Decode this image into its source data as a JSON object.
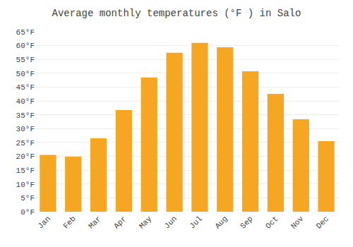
{
  "chart_data": {
    "type": "bar",
    "title": "Average monthly temperatures (°F ) in Salo",
    "categories": [
      "Jan",
      "Feb",
      "Mar",
      "Apr",
      "May",
      "Jun",
      "Jul",
      "Aug",
      "Sep",
      "Oct",
      "Nov",
      "Dec"
    ],
    "values": [
      20.5,
      19.9,
      26.5,
      36.7,
      48.5,
      57.4,
      61.0,
      59.4,
      50.7,
      42.6,
      33.4,
      25.5
    ],
    "color": "#F5A623",
    "ylim": [
      0,
      65
    ],
    "yticks": [
      {
        "value": 0,
        "label": "0°F"
      },
      {
        "value": 5,
        "label": "5°F"
      },
      {
        "value": 10,
        "label": "10°F"
      },
      {
        "value": 15,
        "label": "15°F"
      },
      {
        "value": 20,
        "label": "20°F"
      },
      {
        "value": 25,
        "label": "25°F"
      },
      {
        "value": 30,
        "label": "30°F"
      },
      {
        "value": 35,
        "label": "35°F"
      },
      {
        "value": 40,
        "label": "40°F"
      },
      {
        "value": 45,
        "label": "45°F"
      },
      {
        "value": 50,
        "label": "50°F"
      },
      {
        "value": 55,
        "label": "55°F"
      },
      {
        "value": 60,
        "label": "60°F"
      },
      {
        "value": 65,
        "label": "65°F"
      }
    ],
    "grid": true
  }
}
